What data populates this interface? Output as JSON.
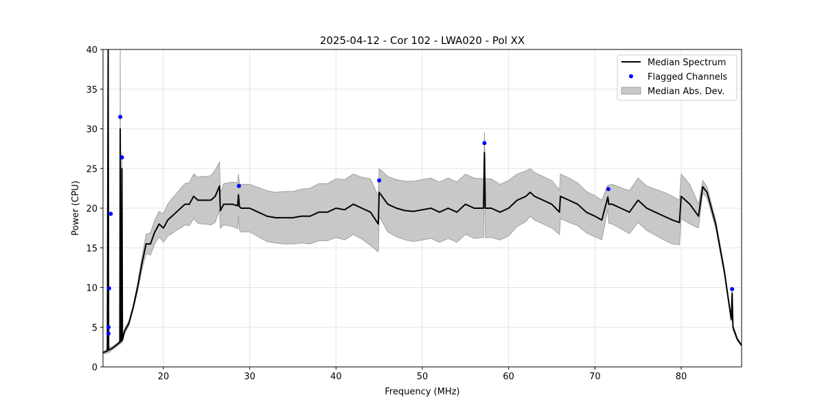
{
  "chart_data": {
    "type": "line",
    "title": "2025-04-12 - Cor 102 - LWA020 - Pol XX",
    "xlabel": "Frequency (MHz)",
    "ylabel": "Power (CPU)",
    "xlim": [
      13.0,
      87.0
    ],
    "ylim": [
      0,
      40
    ],
    "xticks": [
      20,
      30,
      40,
      50,
      60,
      70,
      80
    ],
    "yticks": [
      0,
      5,
      10,
      15,
      20,
      25,
      30,
      35,
      40
    ],
    "grid": true,
    "legend_placement": "top-right",
    "legend": [
      "Median Spectrum",
      "Flagged Channels",
      "Median Abs. Dev."
    ],
    "colors": {
      "median": "#000000",
      "flagged": "#0000ff",
      "mad_fill": "#c8c8c8",
      "mad_edge": "#a0a0a0"
    },
    "median_spectrum_xy_mad": [
      [
        13.0,
        1.8,
        0.1
      ],
      [
        13.5,
        2.0,
        0.3
      ],
      [
        13.6,
        40,
        20
      ],
      [
        13.65,
        2.1,
        0.3
      ],
      [
        13.8,
        2.2,
        0.3
      ],
      [
        14.0,
        2.3,
        0.2
      ],
      [
        14.5,
        2.7,
        0.2
      ],
      [
        14.95,
        3.1,
        0.2
      ],
      [
        15.0,
        30,
        12
      ],
      [
        15.05,
        3.2,
        0.3
      ],
      [
        15.15,
        3.3,
        0.3
      ],
      [
        15.2,
        25,
        2
      ],
      [
        15.25,
        3.4,
        0.3
      ],
      [
        15.5,
        4.5,
        0.3
      ],
      [
        16,
        5.5,
        0.3
      ],
      [
        16.5,
        7.5,
        0.3
      ],
      [
        17,
        10,
        0.5
      ],
      [
        17.5,
        13,
        0.8
      ],
      [
        18,
        15.5,
        1.2
      ],
      [
        18.5,
        15.5,
        1.4
      ],
      [
        19,
        17,
        1.5
      ],
      [
        19.5,
        18,
        1.6
      ],
      [
        20,
        17.5,
        1.8
      ],
      [
        20.5,
        18.5,
        2
      ],
      [
        21,
        19,
        2.2
      ],
      [
        21.5,
        19.5,
        2.3
      ],
      [
        22,
        20,
        2.5
      ],
      [
        22.5,
        20.5,
        2.6
      ],
      [
        23,
        20.5,
        2.7
      ],
      [
        23.5,
        21.5,
        2.8
      ],
      [
        24,
        21,
        2.9
      ],
      [
        24.5,
        21,
        3
      ],
      [
        25,
        21,
        3
      ],
      [
        25.5,
        21,
        3.1
      ],
      [
        26,
        21.5,
        3.3
      ],
      [
        26.5,
        22.8,
        3.0
      ],
      [
        26.6,
        19.7,
        2.2
      ],
      [
        27,
        20.5,
        2.6
      ],
      [
        28,
        20.5,
        2.8
      ],
      [
        28.6,
        20.3,
        2.9
      ],
      [
        28.7,
        21.7,
        2.6
      ],
      [
        28.8,
        20.2,
        2.9
      ],
      [
        29,
        20,
        3
      ],
      [
        30,
        20,
        3
      ],
      [
        31,
        19.5,
        3.1
      ],
      [
        32,
        19,
        3.2
      ],
      [
        33,
        18.8,
        3.2
      ],
      [
        34,
        18.8,
        3.3
      ],
      [
        35,
        18.8,
        3.3
      ],
      [
        36,
        19,
        3.4
      ],
      [
        37,
        19,
        3.5
      ],
      [
        38,
        19.5,
        3.6
      ],
      [
        39,
        19.5,
        3.6
      ],
      [
        40,
        20,
        3.7
      ],
      [
        41,
        19.8,
        3.8
      ],
      [
        42,
        20.5,
        3.8
      ],
      [
        43,
        20,
        3.9
      ],
      [
        44,
        19.5,
        4.2
      ],
      [
        44.9,
        18,
        3.5
      ],
      [
        45,
        22,
        3.0
      ],
      [
        46,
        20.5,
        3.5
      ],
      [
        47,
        20,
        3.6
      ],
      [
        48,
        19.7,
        3.7
      ],
      [
        49,
        19.6,
        3.8
      ],
      [
        50,
        19.8,
        3.8
      ],
      [
        51,
        20,
        3.8
      ],
      [
        52,
        19.5,
        3.8
      ],
      [
        53,
        20,
        3.8
      ],
      [
        54,
        19.5,
        3.8
      ],
      [
        55,
        20.5,
        3.8
      ],
      [
        56,
        20,
        3.8
      ],
      [
        57.1,
        20,
        3.7
      ],
      [
        57.2,
        27,
        2.6
      ],
      [
        57.3,
        20,
        3.7
      ],
      [
        58,
        20,
        3.7
      ],
      [
        59,
        19.5,
        3.5
      ],
      [
        60,
        20,
        3.5
      ],
      [
        61,
        21,
        3.3
      ],
      [
        62,
        21.5,
        3.2
      ],
      [
        62.5,
        22,
        3
      ],
      [
        63,
        21.5,
        3
      ],
      [
        64,
        21,
        3
      ],
      [
        65,
        20.5,
        3
      ],
      [
        65.9,
        19.5,
        2.8
      ],
      [
        66,
        21.5,
        2.8
      ],
      [
        67,
        21,
        2.8
      ],
      [
        68,
        20.5,
        2.7
      ],
      [
        69,
        19.5,
        2.6
      ],
      [
        70,
        19,
        2.6
      ],
      [
        70.8,
        18.5,
        2.5
      ],
      [
        71.5,
        21.4,
        1.5
      ],
      [
        71.6,
        20.5,
        2.4
      ],
      [
        72,
        20.5,
        2.5
      ],
      [
        73,
        20,
        2.6
      ],
      [
        74,
        19.5,
        2.7
      ],
      [
        75,
        21,
        2.8
      ],
      [
        76,
        20,
        2.8
      ],
      [
        77,
        19.5,
        2.9
      ],
      [
        78,
        19,
        3
      ],
      [
        79,
        18.5,
        3
      ],
      [
        79.8,
        18.2,
        2.8
      ],
      [
        80,
        21.5,
        2.8
      ],
      [
        81,
        20.5,
        2.5
      ],
      [
        82,
        19,
        1.5
      ],
      [
        82.5,
        22.7,
        0.8
      ],
      [
        83,
        22,
        0.7
      ],
      [
        84,
        18,
        0.5
      ],
      [
        85,
        12,
        0.4
      ],
      [
        85.8,
        6,
        0.3
      ],
      [
        85.9,
        9.3,
        0.3
      ],
      [
        86,
        5,
        0.3
      ],
      [
        86.5,
        3.5,
        0.2
      ],
      [
        87,
        2.7,
        0.1
      ]
    ],
    "flagged_channels": [
      [
        13.64,
        5.0
      ],
      [
        13.64,
        4.2
      ],
      [
        13.7,
        9.9
      ],
      [
        13.9,
        19.3
      ],
      [
        15.0,
        31.5
      ],
      [
        15.2,
        26.4
      ],
      [
        28.75,
        22.8
      ],
      [
        45.0,
        23.5
      ],
      [
        57.2,
        28.2
      ],
      [
        71.55,
        22.4
      ],
      [
        85.9,
        9.8
      ]
    ]
  }
}
